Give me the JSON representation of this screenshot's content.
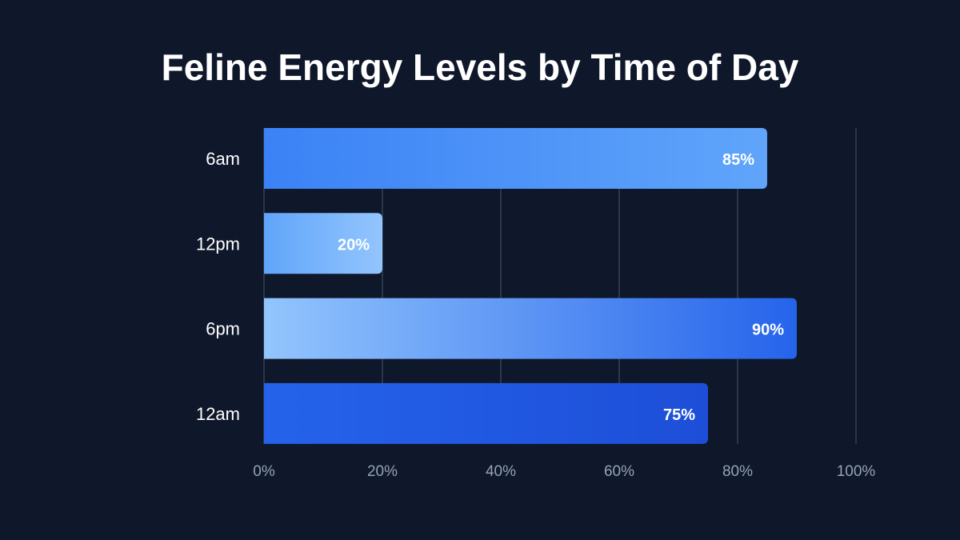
{
  "chart_data": {
    "type": "bar",
    "orientation": "horizontal",
    "title": "Feline Energy Levels by Time of Day",
    "categories": [
      "6am",
      "12pm",
      "6pm",
      "12am"
    ],
    "values": [
      85,
      20,
      90,
      75
    ],
    "value_labels": [
      "85%",
      "20%",
      "90%",
      "75%"
    ],
    "xlim": [
      0,
      100
    ],
    "x_ticks": [
      0,
      20,
      40,
      60,
      80,
      100
    ],
    "x_tick_labels": [
      "0%",
      "20%",
      "40%",
      "60%",
      "80%",
      "100%"
    ],
    "grid": "vertical",
    "legend": "none",
    "bar_colors": [
      [
        "#3b82f6",
        "#60a5fa"
      ],
      [
        "#60a5fa",
        "#93c5fd"
      ],
      [
        "#93c5fd",
        "#2563eb"
      ],
      [
        "#2563eb",
        "#1d4ed8"
      ]
    ],
    "background_color": "#0f172a",
    "grid_color": "#334155",
    "tick_label_color": "#94a3b8"
  }
}
